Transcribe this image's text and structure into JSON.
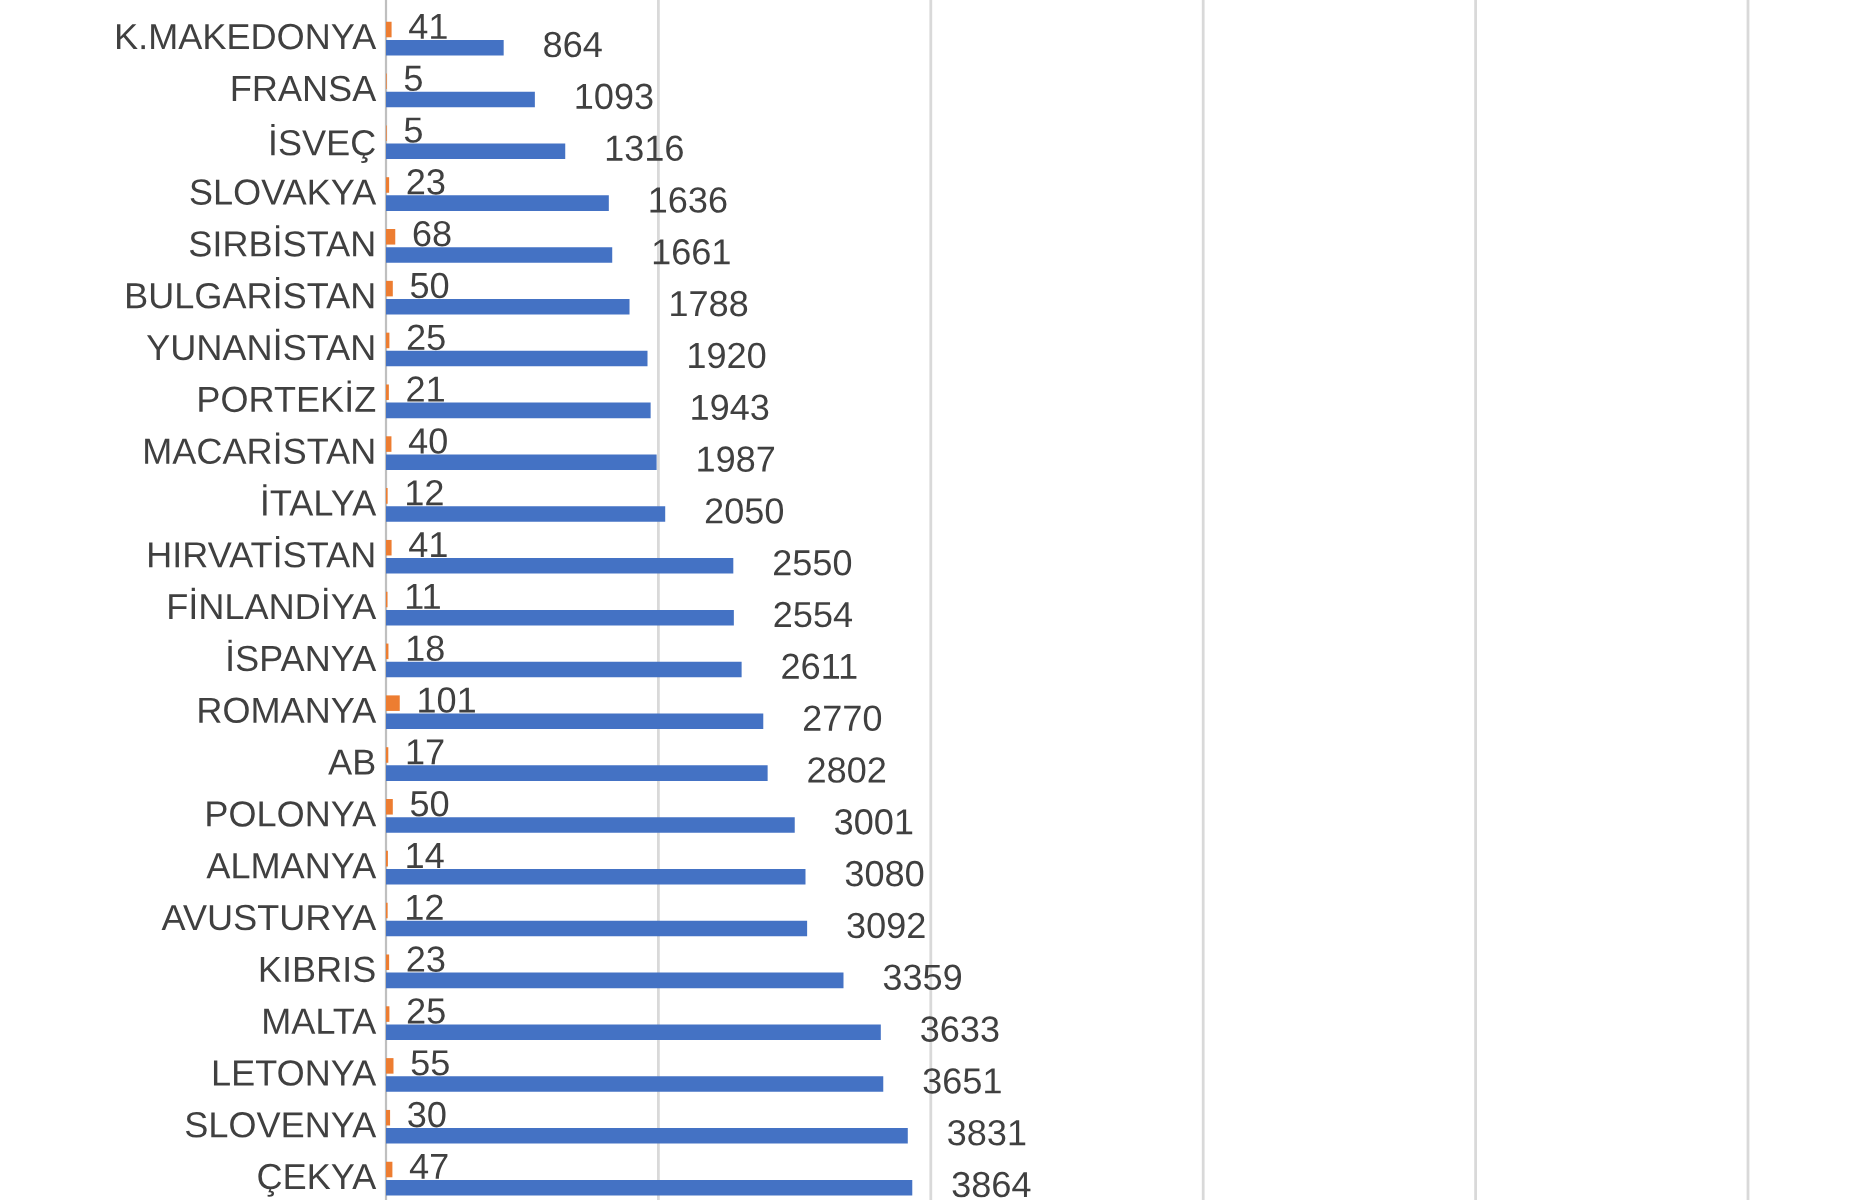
{
  "chart_data": {
    "type": "bar",
    "orientation": "horizontal",
    "categories": [
      "K.MAKEDONYA",
      "FRANSA",
      "İSVEÇ",
      "SLOVAKYA",
      "SIRBİSTAN",
      "BULGARİSTAN",
      "YUNANİSTAN",
      "PORTEKİZ",
      "MACARİSTAN",
      "İTALYA",
      "HIRVATİSTAN",
      "FİNLANDİYA",
      "İSPANYA",
      "ROMANYA",
      "AB",
      "POLONYA",
      "ALMANYA",
      "AVUSTURYA",
      "KIBRIS",
      "MALTA",
      "LETONYA",
      "SLOVENYA",
      "ÇEKYA"
    ],
    "series": [
      {
        "color": "#ed7d31",
        "values": [
          41,
          5,
          5,
          23,
          68,
          50,
          25,
          21,
          40,
          12,
          41,
          11,
          18,
          101,
          17,
          50,
          14,
          12,
          23,
          25,
          55,
          30,
          47
        ]
      },
      {
        "color": "#4472c4",
        "values": [
          864,
          1093,
          1316,
          1636,
          1661,
          1788,
          1920,
          1943,
          1987,
          2050,
          2550,
          2554,
          2611,
          2770,
          2802,
          3001,
          3080,
          3092,
          3359,
          3633,
          3651,
          3831,
          3864
        ]
      }
    ],
    "data_labels": true,
    "tick_labels": "y",
    "xlim": [
      0,
      10000
    ],
    "ref_lines": [
      {
        "axis": "x",
        "value": 2000,
        "color": "#d9d9d9"
      },
      {
        "axis": "x",
        "value": 4000,
        "color": "#d9d9d9"
      },
      {
        "axis": "x",
        "value": 6000,
        "color": "#d9d9d9"
      },
      {
        "axis": "x",
        "value": 8000,
        "color": "#d9d9d9"
      },
      {
        "axis": "x",
        "value": 10000,
        "color": "#d9d9d9"
      }
    ]
  }
}
